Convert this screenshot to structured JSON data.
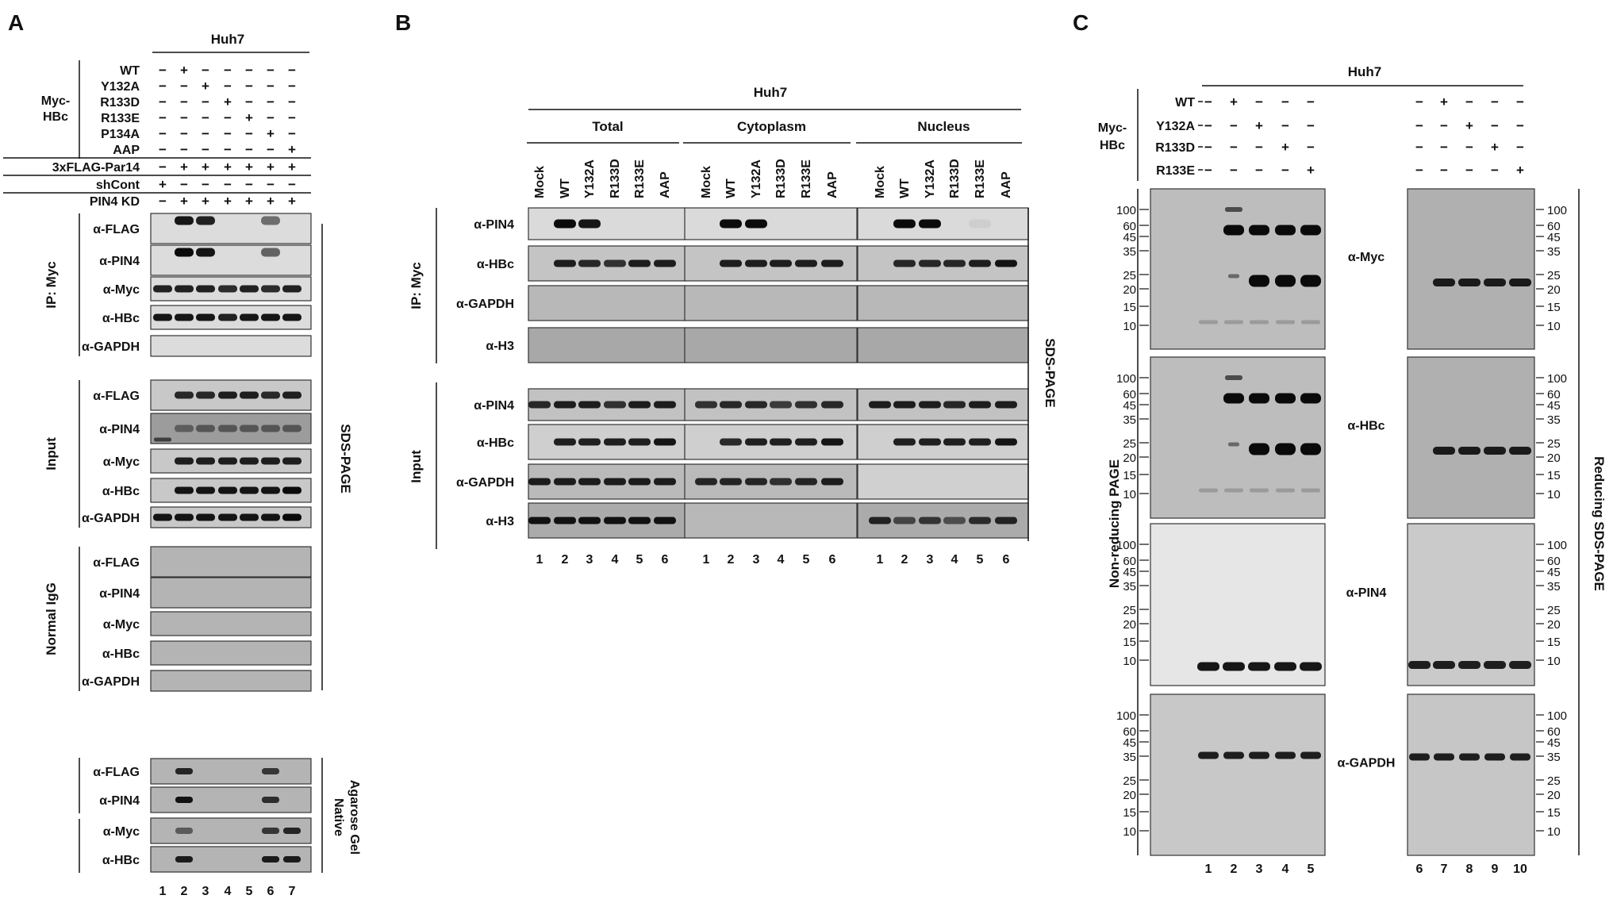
{
  "panels": {
    "A": {
      "letter": "A",
      "cell": "Huh7",
      "myc_hbc_label": [
        "Myc-",
        "HBc"
      ],
      "rows": [
        {
          "label": "WT",
          "signs": [
            "−",
            "+",
            "−",
            "−",
            "−",
            "−",
            "−"
          ]
        },
        {
          "label": "Y132A",
          "signs": [
            "−",
            "−",
            "+",
            "−",
            "−",
            "−",
            "−"
          ]
        },
        {
          "label": "R133D",
          "signs": [
            "−",
            "−",
            "−",
            "+",
            "−",
            "−",
            "−"
          ]
        },
        {
          "label": "R133E",
          "signs": [
            "−",
            "−",
            "−",
            "−",
            "+",
            "−",
            "−"
          ]
        },
        {
          "label": "P134A",
          "signs": [
            "−",
            "−",
            "−",
            "−",
            "−",
            "+",
            "−"
          ]
        },
        {
          "label": "AAP",
          "signs": [
            "−",
            "−",
            "−",
            "−",
            "−",
            "−",
            "+"
          ]
        },
        {
          "label": "3xFLAG-Par14",
          "signs": [
            "−",
            "+",
            "+",
            "+",
            "+",
            "+",
            "+"
          ]
        },
        {
          "label": "shCont",
          "signs": [
            "+",
            "−",
            "−",
            "−",
            "−",
            "−",
            "−"
          ]
        },
        {
          "label": "PIN4 KD",
          "signs": [
            "−",
            "+",
            "+",
            "+",
            "+",
            "+",
            "+"
          ]
        }
      ],
      "groups": [
        {
          "label": "IP: Myc",
          "blots": [
            "α-FLAG",
            "α-PIN4",
            "α-Myc",
            "α-HBc",
            "α-GAPDH"
          ]
        },
        {
          "label": "Input",
          "blots": [
            "α-FLAG",
            "α-PIN4",
            "α-Myc",
            "α-HBc",
            "α-GAPDH"
          ]
        },
        {
          "label": "Normal IgG",
          "blots": [
            "α-FLAG",
            "α-PIN4",
            "α-Myc",
            "α-HBc",
            "α-GAPDH"
          ]
        }
      ],
      "native_blots": [
        "α-FLAG",
        "α-PIN4",
        "α-Myc",
        "α-HBc"
      ],
      "sds_label": "SDS-PAGE",
      "native_label": [
        "Native",
        "Agarose Gel"
      ],
      "lanes": [
        "1",
        "2",
        "3",
        "4",
        "5",
        "6",
        "7"
      ]
    },
    "B": {
      "letter": "B",
      "cell": "Huh7",
      "fractions": [
        "Total",
        "Cytoplasm",
        "Nucleus"
      ],
      "lane_labels": [
        "Mock",
        "WT",
        "Y132A",
        "R133D",
        "R133E",
        "AAP"
      ],
      "ip_label": "IP: Myc",
      "input_label": "Input",
      "ip_blots": [
        "α-PIN4",
        "α-HBc",
        "α-GAPDH",
        "α-H3"
      ],
      "input_blots": [
        "α-PIN4",
        "α-HBc",
        "α-GAPDH",
        "α-H3"
      ],
      "sds_label": "SDS-PAGE",
      "lanes": [
        "1",
        "2",
        "3",
        "4",
        "5",
        "6"
      ]
    },
    "C": {
      "letter": "C",
      "cell": "Huh7",
      "myc_hbc_label": [
        "Myc-",
        "HBc"
      ],
      "rows": [
        {
          "label": "WT",
          "left": [
            "−",
            "+",
            "−",
            "−",
            "−"
          ],
          "right": [
            "−",
            "+",
            "−",
            "−",
            "−"
          ]
        },
        {
          "label": "Y132A",
          "left": [
            "−",
            "−",
            "+",
            "−",
            "−"
          ],
          "right": [
            "−",
            "−",
            "+",
            "−",
            "−"
          ]
        },
        {
          "label": "R133D",
          "left": [
            "−",
            "−",
            "−",
            "+",
            "−"
          ],
          "right": [
            "−",
            "−",
            "−",
            "+",
            "−"
          ]
        },
        {
          "label": "R133E",
          "left": [
            "−",
            "−",
            "−",
            "−",
            "+"
          ],
          "right": [
            "−",
            "−",
            "−",
            "−",
            "+"
          ]
        }
      ],
      "antibodies": [
        "α-Myc",
        "α-HBc",
        "α-PIN4",
        "α-GAPDH"
      ],
      "markers": [
        "100",
        "60",
        "45",
        "35",
        "25",
        "20",
        "15",
        "10"
      ],
      "left_label": "Non-reducing PAGE",
      "right_label": "Reducing SDS-PAGE",
      "lanes_left": [
        "1",
        "2",
        "3",
        "4",
        "5"
      ],
      "lanes_right": [
        "6",
        "7",
        "8",
        "9",
        "10"
      ]
    }
  }
}
